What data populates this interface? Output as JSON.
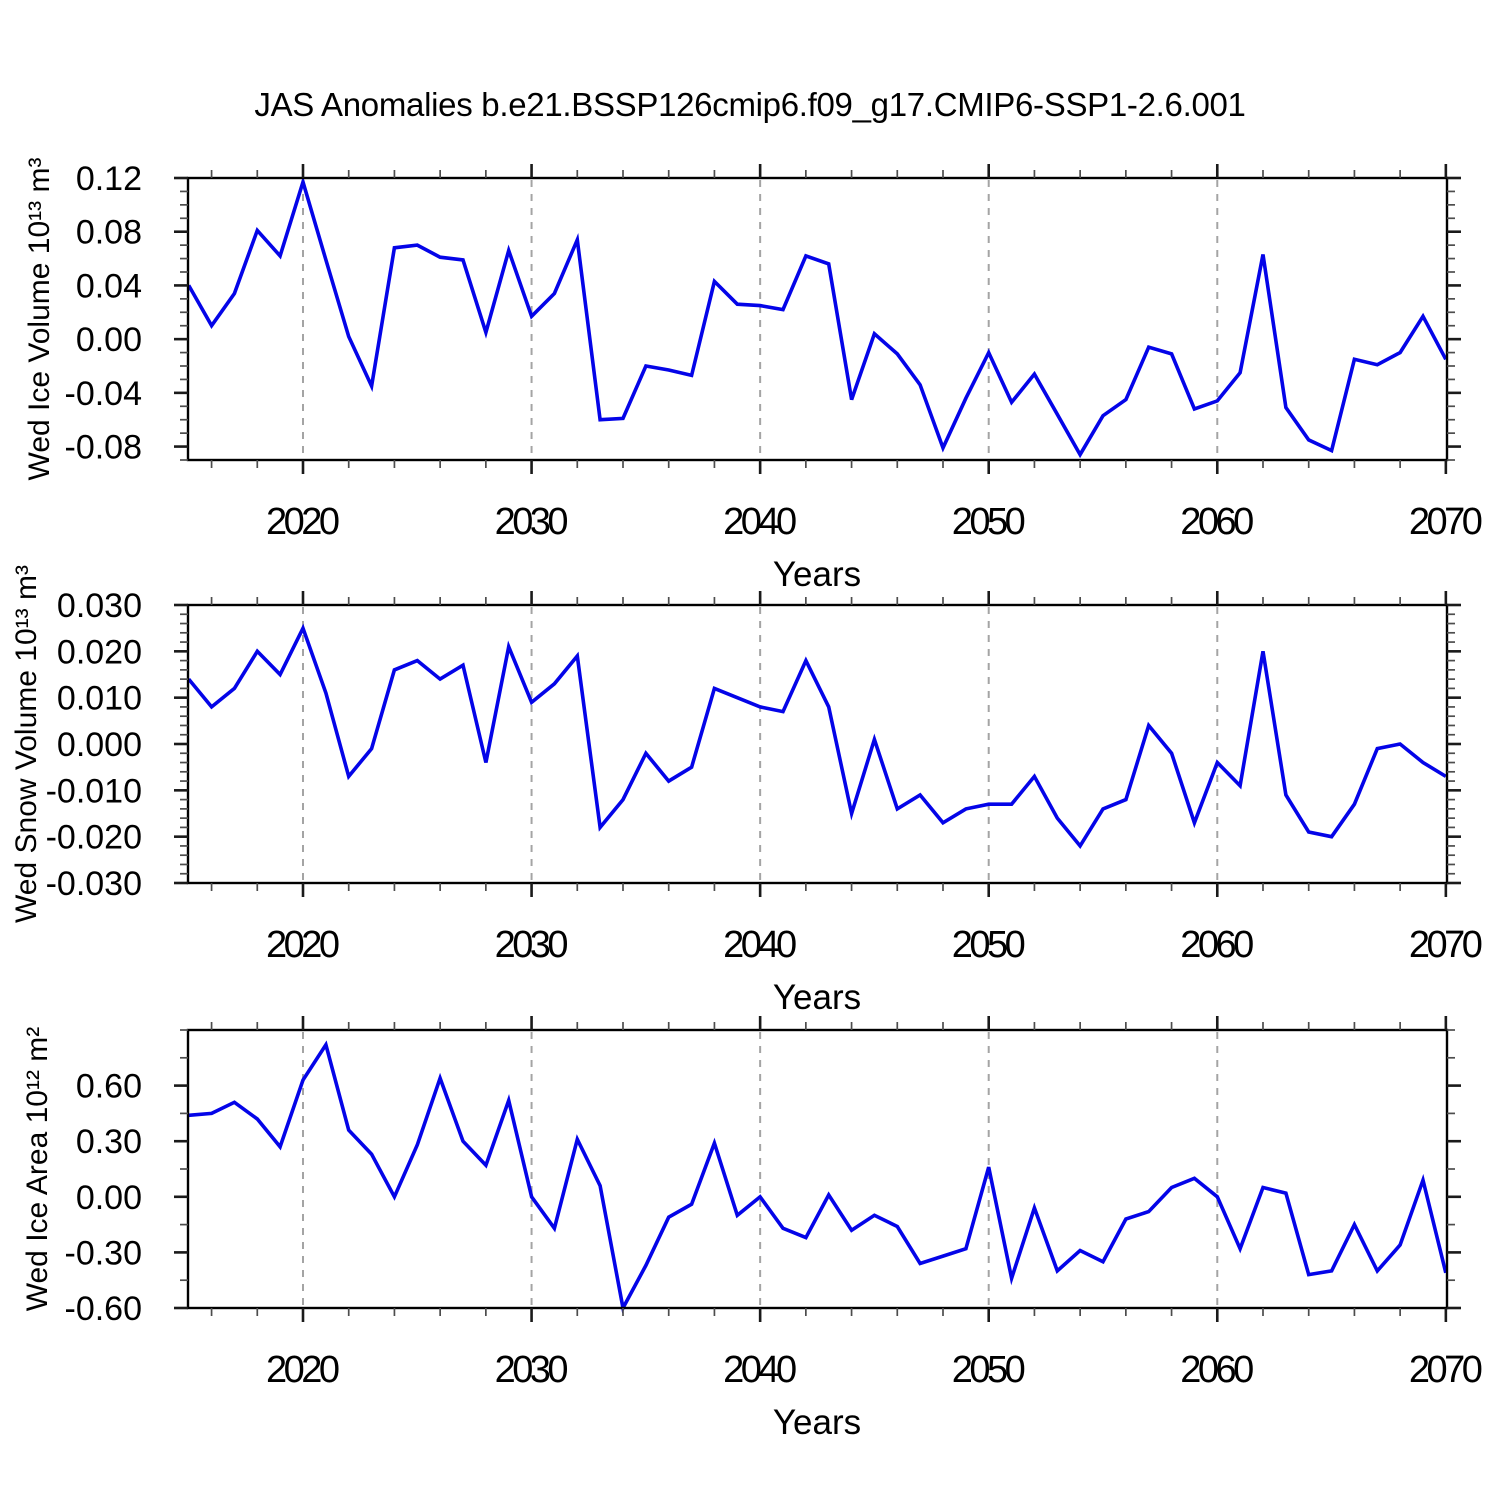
{
  "title": "JAS Anomalies b.e21.BSSP126cmip6.f09_g17.CMIP6-SSP1-2.6.001",
  "colors": {
    "line": "#0404E8",
    "grid": "#A4A4A4",
    "axis": "#000000",
    "major_tick": "#1A1A1A",
    "minor_tick": "#4D4D4D",
    "background": "#FFFFFF"
  },
  "x_axis": {
    "label": "Years",
    "years": [
      2015,
      2016,
      2017,
      2018,
      2019,
      2020,
      2021,
      2022,
      2023,
      2024,
      2025,
      2026,
      2027,
      2028,
      2029,
      2030,
      2031,
      2032,
      2033,
      2034,
      2035,
      2036,
      2037,
      2038,
      2039,
      2040,
      2041,
      2042,
      2043,
      2044,
      2045,
      2046,
      2047,
      2048,
      2049,
      2050,
      2051,
      2052,
      2053,
      2054,
      2055,
      2056,
      2057,
      2058,
      2059,
      2060,
      2061,
      2062,
      2063,
      2064,
      2065,
      2066,
      2067,
      2068,
      2069,
      2070
    ],
    "major_tick_labels": [
      "2020",
      "2030",
      "2040",
      "2050",
      "2060",
      "2070"
    ],
    "major_ticks": [
      2020,
      2030,
      2040,
      2050,
      2060,
      2070
    ],
    "minor_tick_step": 2,
    "grid_years": [
      2020,
      2030,
      2040,
      2050,
      2060
    ],
    "range": [
      2015,
      2070
    ]
  },
  "chart_data": [
    {
      "type": "line",
      "name": "wed-ice-volume",
      "ylabel": "Wed Ice Volume 10¹³ m³",
      "xlabel": "Years",
      "ylim": [
        -0.09,
        0.12
      ],
      "ytick_labels": [
        "0.12",
        "0.08",
        "0.04",
        "0.00",
        "-0.04",
        "-0.08"
      ],
      "ytick_values": [
        0.12,
        0.08,
        0.04,
        0.0,
        -0.04,
        -0.08
      ],
      "y_minor_step": 0.01,
      "grid": "vertical-dashed",
      "legend": "none",
      "values": [
        0.04,
        0.01,
        0.034,
        0.081,
        0.062,
        0.117,
        0.059,
        0.002,
        -0.035,
        0.068,
        0.07,
        0.061,
        0.059,
        0.005,
        0.066,
        0.017,
        0.034,
        0.074,
        -0.06,
        -0.059,
        -0.02,
        -0.023,
        -0.027,
        0.043,
        0.026,
        0.025,
        0.022,
        0.062,
        0.056,
        -0.045,
        0.004,
        -0.011,
        -0.034,
        -0.081,
        -0.044,
        -0.01,
        -0.047,
        -0.026,
        -0.056,
        -0.086,
        -0.057,
        -0.045,
        -0.006,
        -0.011,
        -0.052,
        -0.046,
        -0.025,
        0.063,
        -0.051,
        -0.075,
        -0.083,
        -0.015,
        -0.019,
        -0.01,
        0.017,
        -0.015
      ]
    },
    {
      "type": "line",
      "name": "wed-snow-volume",
      "ylabel": "Wed Snow Volume 10¹³ m³",
      "xlabel": "Years",
      "ylim": [
        -0.03,
        0.03
      ],
      "ytick_labels": [
        "0.030",
        "0.020",
        "0.010",
        "0.000",
        "-0.010",
        "-0.020",
        "-0.030"
      ],
      "ytick_values": [
        0.03,
        0.02,
        0.01,
        0.0,
        -0.01,
        -0.02,
        -0.03
      ],
      "y_minor_step": 0.002,
      "grid": "vertical-dashed",
      "legend": "none",
      "values": [
        0.014,
        0.008,
        0.012,
        0.02,
        0.015,
        0.025,
        0.011,
        -0.007,
        -0.001,
        0.016,
        0.018,
        0.014,
        0.017,
        -0.004,
        0.021,
        0.009,
        0.013,
        0.019,
        -0.018,
        -0.012,
        -0.002,
        -0.008,
        -0.005,
        0.012,
        0.01,
        0.008,
        0.007,
        0.018,
        0.008,
        -0.015,
        0.001,
        -0.014,
        -0.011,
        -0.017,
        -0.014,
        -0.013,
        -0.013,
        -0.007,
        -0.016,
        -0.022,
        -0.014,
        -0.012,
        0.004,
        -0.002,
        -0.017,
        -0.004,
        -0.009,
        0.02,
        -0.011,
        -0.019,
        -0.02,
        -0.013,
        -0.001,
        0.0,
        -0.004,
        -0.007
      ]
    },
    {
      "type": "line",
      "name": "wed-ice-area",
      "ylabel": "Wed Ice Area 10¹² m²",
      "xlabel": "Years",
      "ylim": [
        -0.6,
        0.9
      ],
      "ytick_labels": [
        "0.60",
        "0.30",
        "0.00",
        "-0.30",
        "-0.60"
      ],
      "ytick_values": [
        0.6,
        0.3,
        0.0,
        -0.3,
        -0.6
      ],
      "y_minor_step": 0.15,
      "grid": "vertical-dashed",
      "legend": "none",
      "values": [
        0.44,
        0.45,
        0.51,
        0.42,
        0.27,
        0.63,
        0.82,
        0.36,
        0.23,
        0.0,
        0.28,
        0.64,
        0.3,
        0.17,
        0.52,
        0.0,
        -0.17,
        0.31,
        0.06,
        -0.6,
        -0.37,
        -0.11,
        -0.04,
        0.29,
        -0.1,
        0.0,
        -0.17,
        -0.22,
        0.01,
        -0.18,
        -0.1,
        -0.16,
        -0.36,
        -0.32,
        -0.28,
        0.16,
        -0.44,
        -0.06,
        -0.4,
        -0.29,
        -0.35,
        -0.12,
        -0.08,
        0.05,
        0.1,
        0.0,
        -0.28,
        0.05,
        0.02,
        -0.42,
        -0.4,
        -0.15,
        -0.4,
        -0.26,
        0.09,
        -0.41
      ]
    }
  ]
}
